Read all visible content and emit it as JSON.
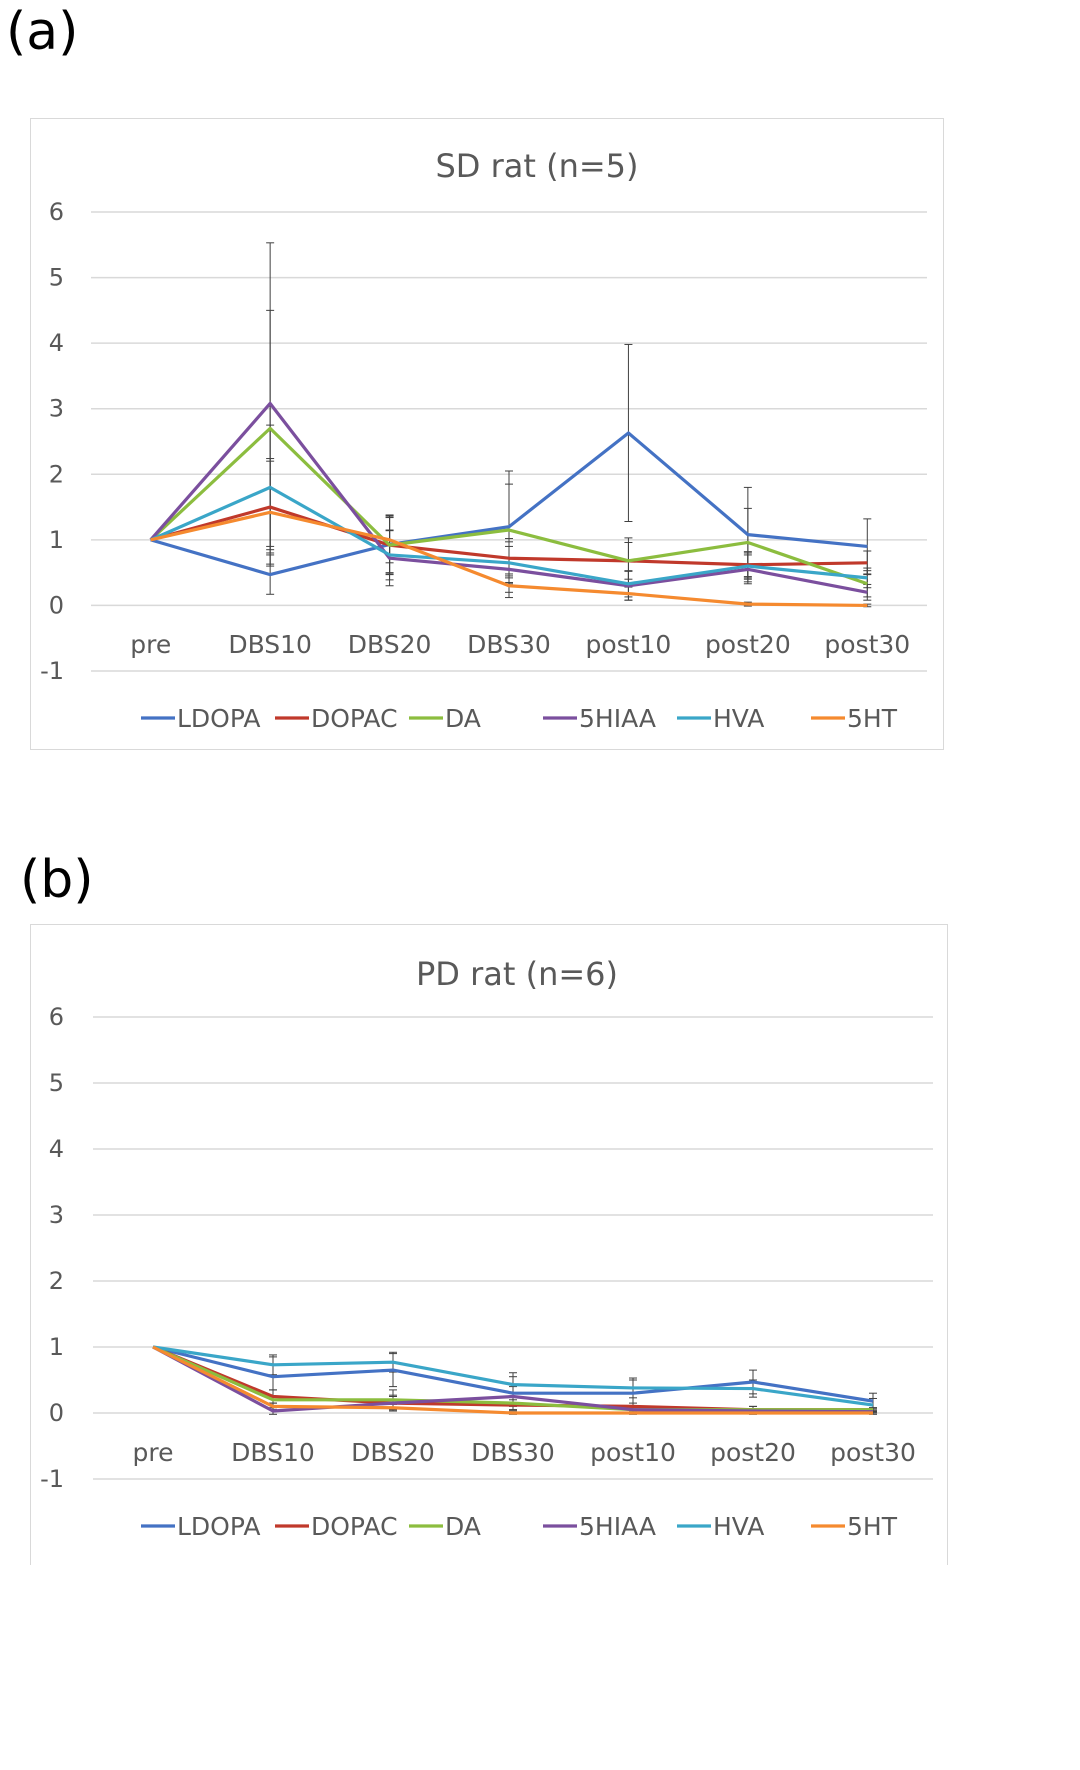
{
  "panels": [
    {
      "label": "(a)",
      "chart_data": {
        "type": "line",
        "title": "SD rat (n=5)",
        "xlabel": "",
        "ylabel": "",
        "categories": [
          "pre",
          "DBS10",
          "DBS20",
          "DBS30",
          "post10",
          "post20",
          "post30"
        ],
        "ylim": [
          -1,
          6
        ],
        "yticks": [
          -1,
          0,
          1,
          2,
          3,
          4,
          5,
          6
        ],
        "grid": true,
        "legend_position": "bottom",
        "series": [
          {
            "name": "LDOPA",
            "color": "#4472c4",
            "values": [
              1,
              0.47,
              0.93,
              1.2,
              2.63,
              1.08,
              0.9
            ],
            "err": [
              0,
              0.3,
              0.45,
              0.85,
              1.35,
              0.72,
              0.42
            ]
          },
          {
            "name": "DOPAC",
            "color": "#c0392b",
            "values": [
              1,
              1.5,
              0.92,
              0.72,
              0.68,
              0.62,
              0.65
            ],
            "err": [
              0,
              0.7,
              0.42,
              0.3,
              0.28,
              0.2,
              0.18
            ]
          },
          {
            "name": "DA",
            "color": "#8cbd3f",
            "values": [
              1,
              2.7,
              0.92,
              1.15,
              0.68,
              0.96,
              0.33
            ],
            "err": [
              0,
              1.8,
              0.45,
              0.7,
              0.35,
              0.52,
              0.2
            ]
          },
          {
            "name": "5HIAA",
            "color": "#7b4f9e",
            "values": [
              1,
              3.08,
              0.72,
              0.55,
              0.3,
              0.55,
              0.2
            ],
            "err": [
              0,
              2.45,
              0.42,
              0.35,
              0.22,
              0.22,
              0.12
            ]
          },
          {
            "name": "HVA",
            "color": "#3aa6c8",
            "values": [
              1,
              1.8,
              0.77,
              0.65,
              0.33,
              0.6,
              0.42
            ],
            "err": [
              0,
              0.95,
              0.38,
              0.32,
              0.2,
              0.2,
              0.15
            ]
          },
          {
            "name": "5HT",
            "color": "#f58a2f",
            "values": [
              1,
              1.42,
              1.0,
              0.3,
              0.18,
              0.02,
              0.0
            ],
            "err": [
              0,
              0.82,
              0.35,
              0.18,
              0.1,
              0.03,
              0.02
            ]
          }
        ]
      }
    },
    {
      "label": "(b)",
      "chart_data": {
        "type": "line",
        "title": "PD rat (n=6)",
        "xlabel": "",
        "ylabel": "",
        "categories": [
          "pre",
          "DBS10",
          "DBS20",
          "DBS30",
          "post10",
          "post20",
          "post30"
        ],
        "ylim": [
          -1,
          6
        ],
        "yticks": [
          -1,
          0,
          1,
          2,
          3,
          4,
          5,
          6
        ],
        "grid": true,
        "legend_position": "bottom",
        "series": [
          {
            "name": "LDOPA",
            "color": "#4472c4",
            "values": [
              1,
              0.55,
              0.65,
              0.3,
              0.3,
              0.47,
              0.18
            ],
            "err": [
              0,
              0.3,
              0.25,
              0.25,
              0.2,
              0.18,
              0.12
            ]
          },
          {
            "name": "DOPAC",
            "color": "#c0392b",
            "values": [
              1,
              0.25,
              0.15,
              0.12,
              0.1,
              0.05,
              0.05
            ],
            "err": [
              0,
              0.1,
              0.1,
              0.08,
              0.05,
              0.05,
              0.03
            ]
          },
          {
            "name": "DA",
            "color": "#8cbd3f",
            "values": [
              1,
              0.2,
              0.2,
              0.15,
              0.05,
              0.05,
              0.05
            ],
            "err": [
              0,
              0.15,
              0.15,
              0.1,
              0.05,
              0.05,
              0.03
            ]
          },
          {
            "name": "5HIAA",
            "color": "#7b4f9e",
            "values": [
              1,
              0.03,
              0.15,
              0.25,
              0.05,
              0.03,
              0.02
            ],
            "err": [
              0,
              0.05,
              0.12,
              0.15,
              0.05,
              0.03,
              0.02
            ]
          },
          {
            "name": "HVA",
            "color": "#3aa6c8",
            "values": [
              1,
              0.73,
              0.77,
              0.43,
              0.38,
              0.37,
              0.12
            ],
            "err": [
              0,
              0.15,
              0.15,
              0.18,
              0.15,
              0.13,
              0.1
            ]
          },
          {
            "name": "5HT",
            "color": "#f58a2f",
            "values": [
              1,
              0.1,
              0.08,
              0.0,
              0.0,
              0.0,
              0.0
            ],
            "err": [
              0,
              0.05,
              0.05,
              0.02,
              0.02,
              0.02,
              0.02
            ]
          }
        ]
      }
    }
  ]
}
